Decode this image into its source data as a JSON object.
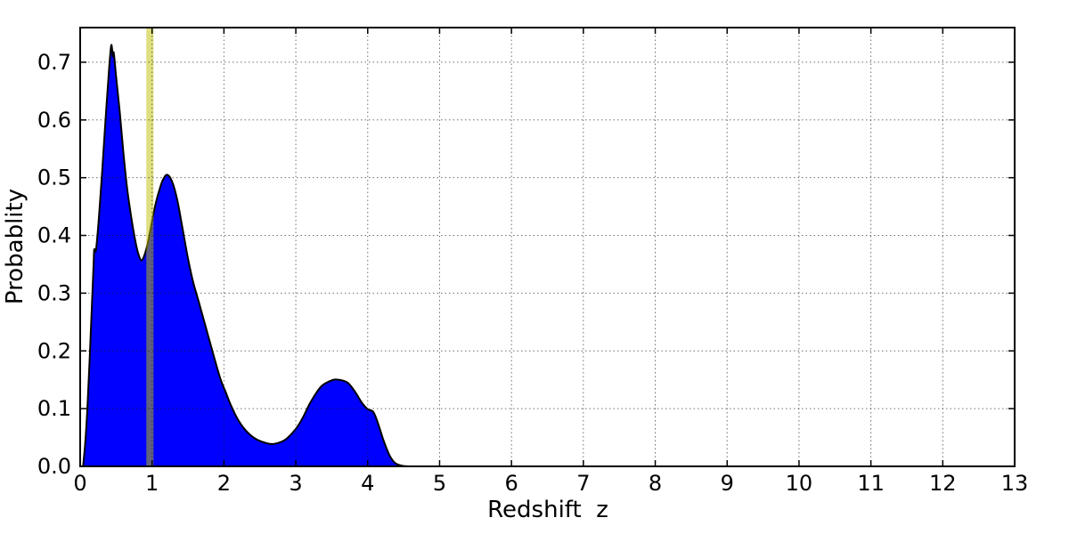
{
  "page": {
    "background": "#ffffff",
    "description": "Photometric redshift probability distribution plot"
  },
  "chart_data": {
    "type": "area",
    "title": "",
    "xlabel": "Redshift  z",
    "ylabel": "Probablity",
    "xlim": [
      0,
      13
    ],
    "ylim": [
      0,
      0.76
    ],
    "xticks": [
      0,
      1,
      2,
      3,
      4,
      5,
      6,
      7,
      8,
      9,
      10,
      11,
      12,
      13
    ],
    "xtick_labels": [
      "0",
      "1",
      "2",
      "3",
      "4",
      "5",
      "6",
      "7",
      "8",
      "9",
      "10",
      "11",
      "12",
      "13"
    ],
    "yticks": [
      0.0,
      0.1,
      0.2,
      0.3,
      0.4,
      0.5,
      0.6,
      0.7
    ],
    "ytick_labels": [
      "0.0",
      "0.1",
      "0.2",
      "0.3",
      "0.4",
      "0.5",
      "0.6",
      "0.7"
    ],
    "grid": {
      "show": true,
      "style": "dotted",
      "color": "#222222",
      "opacity": 0.65
    },
    "axes_color": "#000000",
    "series": [
      {
        "name": "redshift-probability-distribution",
        "type": "filled-curve",
        "fill_color": "#0000ff",
        "edge_color": "#000000",
        "x": [
          0.04,
          0.07,
          0.1,
          0.13,
          0.16,
          0.185,
          0.195,
          0.21,
          0.225,
          0.26,
          0.3,
          0.35,
          0.4,
          0.43,
          0.445,
          0.455,
          0.468,
          0.5,
          0.55,
          0.6,
          0.65,
          0.7,
          0.75,
          0.8,
          0.85,
          0.9,
          0.95,
          1.0,
          1.05,
          1.1,
          1.15,
          1.21,
          1.28,
          1.35,
          1.42,
          1.5,
          1.57,
          1.65,
          1.75,
          1.85,
          1.95,
          2.02,
          2.1,
          2.2,
          2.32,
          2.45,
          2.6,
          2.7,
          2.85,
          3.0,
          3.1,
          3.2,
          3.35,
          3.5,
          3.6,
          3.72,
          3.82,
          3.92,
          4.0,
          4.08,
          4.15,
          4.22,
          4.3,
          4.38,
          4.48,
          4.6,
          5.0,
          13.0
        ],
        "y": [
          0.0,
          0.04,
          0.1,
          0.18,
          0.27,
          0.345,
          0.375,
          0.372,
          0.38,
          0.43,
          0.5,
          0.595,
          0.685,
          0.728,
          0.722,
          0.71,
          0.716,
          0.675,
          0.615,
          0.545,
          0.485,
          0.44,
          0.402,
          0.372,
          0.357,
          0.368,
          0.392,
          0.425,
          0.455,
          0.478,
          0.496,
          0.505,
          0.493,
          0.462,
          0.415,
          0.36,
          0.32,
          0.285,
          0.24,
          0.195,
          0.152,
          0.13,
          0.105,
          0.08,
          0.06,
          0.047,
          0.04,
          0.039,
          0.046,
          0.065,
          0.085,
          0.11,
          0.138,
          0.149,
          0.15,
          0.145,
          0.13,
          0.11,
          0.099,
          0.094,
          0.072,
          0.045,
          0.02,
          0.006,
          0.001,
          0.0,
          0.0,
          0.0
        ],
        "peaks": [
          {
            "z": 0.44,
            "probability": 0.73
          },
          {
            "z": 1.21,
            "probability": 0.505
          },
          {
            "z": 3.55,
            "probability": 0.15
          }
        ]
      }
    ],
    "band": {
      "name": "highlight-band",
      "x_from": 0.92,
      "x_to": 1.02,
      "color": "#bfbf00",
      "opacity": 0.5
    }
  }
}
